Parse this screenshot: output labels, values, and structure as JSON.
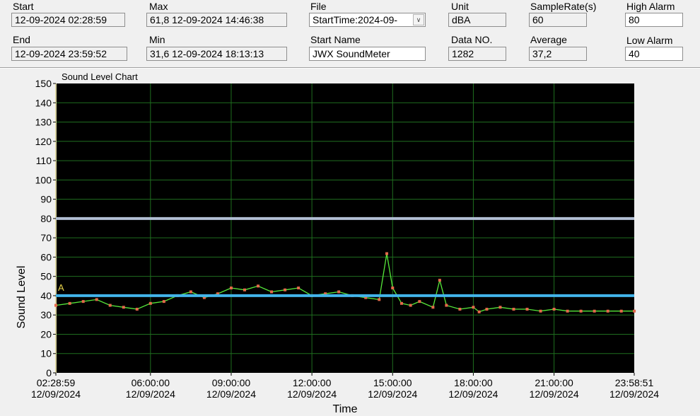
{
  "header": {
    "start": {
      "label": "Start",
      "value": "12-09-2024 02:28:59"
    },
    "end": {
      "label": "End",
      "value": "12-09-2024 23:59:52"
    },
    "max": {
      "label": "Max",
      "value": "61,8 12-09-2024 14:46:38"
    },
    "min": {
      "label": "Min",
      "value": "31,6 12-09-2024 18:13:13"
    },
    "file": {
      "label": "File",
      "value": "StartTime:2024-09-"
    },
    "start_name": {
      "label": "Start Name",
      "value": "JWX SoundMeter"
    },
    "unit": {
      "label": "Unit",
      "value": "dBA"
    },
    "data_no": {
      "label": "Data NO.",
      "value": "1282"
    },
    "sample_rate": {
      "label": "SampleRate(s)",
      "value": "60"
    },
    "average": {
      "label": "Average",
      "value": "37,2"
    },
    "high_alarm": {
      "label": "High Alarm",
      "value": "80"
    },
    "low_alarm": {
      "label": "Low Alarm",
      "value": "40"
    }
  },
  "colors": {
    "plot_bg": "#000000",
    "grid": "#1f6e1f",
    "line": "#56e83a",
    "marker": "#e4684a",
    "high_alarm": "#b2bfd4",
    "low_alarm": "#42b4ea",
    "low_alarm_marker": "#e8d34a"
  },
  "chart_data": {
    "type": "line",
    "title": "Sound Level Chart",
    "xlabel": "Time",
    "ylabel": "Sound Level",
    "ylim": [
      0,
      150
    ],
    "yticks": [
      0,
      10,
      20,
      30,
      40,
      50,
      60,
      70,
      80,
      90,
      100,
      110,
      120,
      130,
      140,
      150
    ],
    "xlim": [
      "12/09/2024 02:28:59",
      "12/09/2024 23:58:51"
    ],
    "xticks": [
      {
        "time": "02:28:59",
        "date": "12/09/2024"
      },
      {
        "time": "06:00:00",
        "date": "12/09/2024"
      },
      {
        "time": "09:00:00",
        "date": "12/09/2024"
      },
      {
        "time": "12:00:00",
        "date": "12/09/2024"
      },
      {
        "time": "15:00:00",
        "date": "12/09/2024"
      },
      {
        "time": "18:00:00",
        "date": "12/09/2024"
      },
      {
        "time": "21:00:00",
        "date": "12/09/2024"
      },
      {
        "time": "23:58:51",
        "date": "12/09/2024"
      }
    ],
    "grid": true,
    "high_alarm": 80,
    "low_alarm": 40,
    "low_alarm_label": "A",
    "series": [
      {
        "x": [
          "02:29",
          "03:00",
          "03:30",
          "04:00",
          "04:30",
          "05:00",
          "05:30",
          "06:00",
          "06:30",
          "07:00",
          "07:30",
          "08:00",
          "08:30",
          "09:00",
          "09:30",
          "10:00",
          "10:30",
          "11:00",
          "11:30",
          "12:00",
          "12:30",
          "13:00",
          "13:30",
          "14:00",
          "14:30",
          "14:47",
          "15:00",
          "15:20",
          "15:40",
          "16:00",
          "16:30",
          "16:45",
          "17:00",
          "17:30",
          "18:00",
          "18:13",
          "18:30",
          "19:00",
          "19:30",
          "20:00",
          "20:30",
          "21:00",
          "21:30",
          "22:00",
          "22:30",
          "23:00",
          "23:30",
          "23:59"
        ],
        "y": [
          35,
          36,
          37,
          38,
          35,
          34,
          33,
          36,
          37,
          40,
          42,
          39,
          41,
          44,
          43,
          45,
          42,
          43,
          44,
          40,
          41,
          42,
          40,
          39,
          38,
          61.8,
          44,
          36,
          35,
          37,
          34,
          48,
          35,
          33,
          34,
          31.6,
          33,
          34,
          33,
          33,
          32,
          33,
          32,
          32,
          32,
          32,
          32,
          32
        ]
      }
    ]
  }
}
